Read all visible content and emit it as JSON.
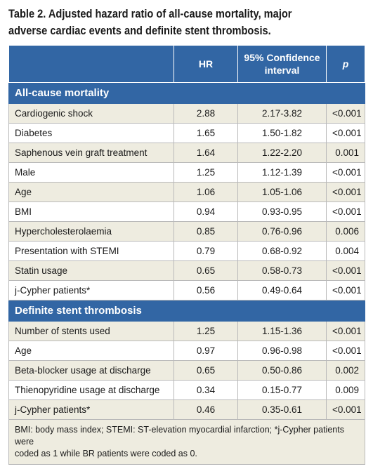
{
  "caption": {
    "line1": "Table 2. Adjusted hazard ratio of all-cause mortality, major",
    "line2": "adverse cardiac events and definite stent thrombosis."
  },
  "headers": {
    "variable": "",
    "hr": "HR",
    "ci_line1": "95% Confidence",
    "ci_line2": "interval",
    "p": "p"
  },
  "sections": [
    {
      "title": "All-cause mortality",
      "rows": [
        {
          "label": "Cardiogenic shock",
          "hr": "2.88",
          "ci": "2.17-3.82",
          "p": "<0.001"
        },
        {
          "label": "Diabetes",
          "hr": "1.65",
          "ci": "1.50-1.82",
          "p": "<0.001"
        },
        {
          "label": "Saphenous vein graft treatment",
          "hr": "1.64",
          "ci": "1.22-2.20",
          "p": "0.001"
        },
        {
          "label": "Male",
          "hr": "1.25",
          "ci": "1.12-1.39",
          "p": "<0.001"
        },
        {
          "label": "Age",
          "hr": "1.06",
          "ci": "1.05-1.06",
          "p": "<0.001"
        },
        {
          "label": "BMI",
          "hr": "0.94",
          "ci": "0.93-0.95",
          "p": "<0.001"
        },
        {
          "label": "Hypercholesterolaemia",
          "hr": "0.85",
          "ci": "0.76-0.96",
          "p": "0.006"
        },
        {
          "label": "Presentation with STEMI",
          "hr": "0.79",
          "ci": "0.68-0.92",
          "p": "0.004"
        },
        {
          "label": "Statin usage",
          "hr": "0.65",
          "ci": "0.58-0.73",
          "p": "<0.001"
        },
        {
          "label": "j-Cypher patients*",
          "hr": "0.56",
          "ci": "0.49-0.64",
          "p": "<0.001"
        }
      ]
    },
    {
      "title": "Definite stent thrombosis",
      "rows": [
        {
          "label": "Number of stents used",
          "hr": "1.25",
          "ci": "1.15-1.36",
          "p": "<0.001"
        },
        {
          "label": "Age",
          "hr": "0.97",
          "ci": "0.96-0.98",
          "p": "<0.001"
        },
        {
          "label": "Beta-blocker usage at discharge",
          "hr": "0.65",
          "ci": "0.50-0.86",
          "p": "0.002"
        },
        {
          "label": "Thienopyridine usage at discharge",
          "hr": "0.34",
          "ci": "0.15-0.77",
          "p": "0.009"
        },
        {
          "label": "j-Cypher patients*",
          "hr": "0.46",
          "ci": "0.35-0.61",
          "p": "<0.001"
        }
      ]
    }
  ],
  "footnote": {
    "line1": "BMI: body mass index; STEMI: ST-elevation myocardial infarction; *j-Cypher patients were",
    "line2": "coded as 1 while BR patients were coded as 0."
  },
  "colors": {
    "header_bg": "#3266a4",
    "odd_row_bg": "#eeece0",
    "even_row_bg": "#ffffff"
  }
}
